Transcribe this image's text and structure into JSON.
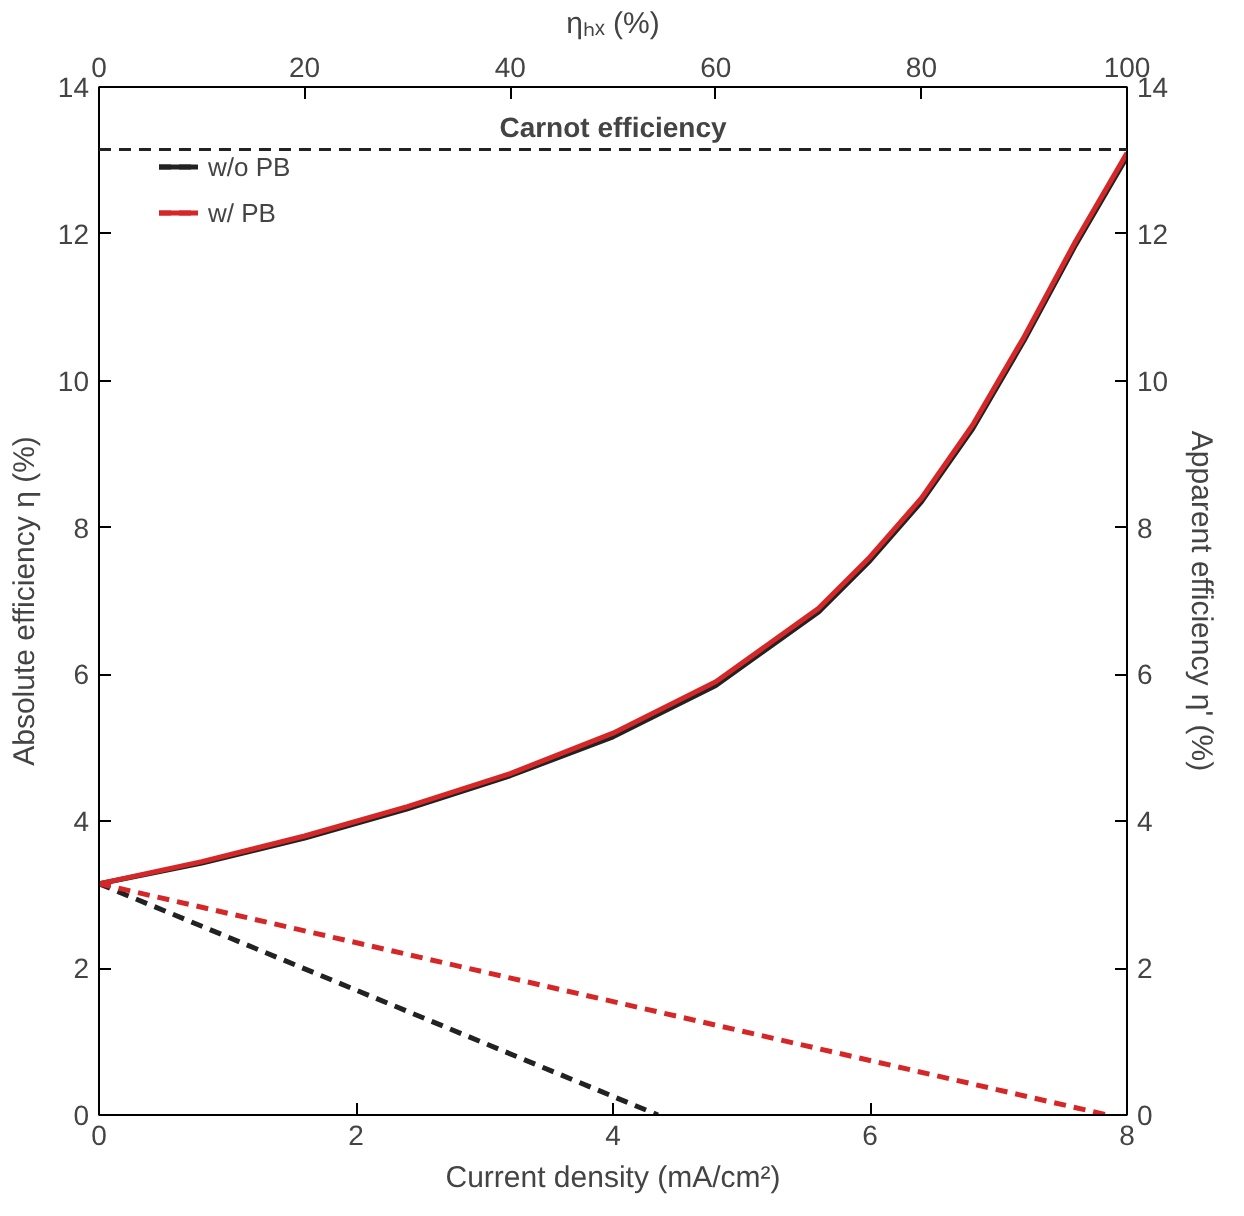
{
  "chart_data": {
    "type": "line",
    "xlabel": "Current density (mA/cm²)",
    "ylabel": "Absolute efficiency η (%)",
    "y2label": "Apparent efficiency η' (%)",
    "x2label": "ηₕₓ (%)",
    "xlim": [
      0,
      8
    ],
    "xticks": [
      0,
      2,
      4,
      6,
      8
    ],
    "x2lim": [
      0,
      100
    ],
    "x2ticks": [
      0,
      20,
      40,
      60,
      80,
      100
    ],
    "ylim": [
      0,
      14
    ],
    "yticks": [
      0,
      2,
      4,
      6,
      8,
      10,
      12,
      14
    ],
    "y2lim": [
      0,
      14
    ],
    "y2ticks": [
      0,
      2,
      4,
      6,
      8,
      10,
      12,
      14
    ],
    "series": [
      {
        "name": "w/o PB",
        "color": "#222222",
        "axis": "x2",
        "line_style": "solid",
        "x": [
          0,
          10,
          20,
          30,
          40,
          50,
          60,
          70,
          75,
          80,
          85,
          90,
          95,
          100
        ],
        "values": [
          3.15,
          3.43,
          3.77,
          4.17,
          4.62,
          5.15,
          5.85,
          6.85,
          7.55,
          8.35,
          9.35,
          10.55,
          11.85,
          13.05
        ]
      },
      {
        "name": "w/ PB",
        "color": "#d62728",
        "axis": "x2",
        "line_style": "solid",
        "x": [
          0,
          10,
          20,
          30,
          40,
          50,
          60,
          70,
          75,
          80,
          85,
          90,
          95,
          100
        ],
        "values": [
          3.15,
          3.45,
          3.8,
          4.2,
          4.65,
          5.2,
          5.9,
          6.9,
          7.6,
          8.4,
          9.4,
          10.6,
          11.9,
          13.1
        ]
      },
      {
        "color": "#222222",
        "line_style": "dashed",
        "x": [
          0,
          4.35
        ],
        "values": [
          3.15,
          0
        ]
      },
      {
        "color": "#d62728",
        "line_style": "dashed",
        "x": [
          0,
          7.85
        ],
        "values": [
          3.15,
          0
        ]
      }
    ],
    "ref_lines": [
      {
        "axis": "y",
        "value": 13.15,
        "label": "Carnot efficiency",
        "color": "#222222",
        "line_style": "dashed"
      }
    ],
    "legend": "top left",
    "grid": false,
    "marker": "none"
  }
}
